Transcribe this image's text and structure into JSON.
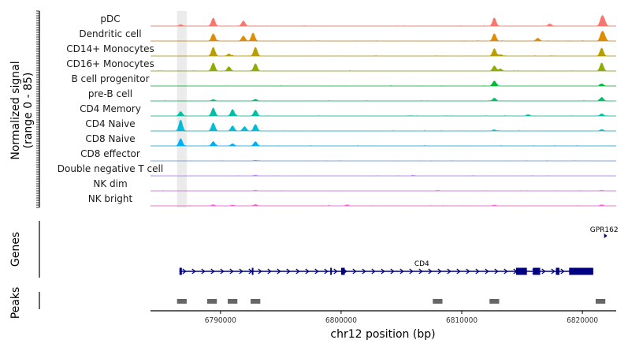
{
  "chart_data": {
    "type": "genome-coverage",
    "ylabel_line1": "Normalized signal",
    "ylabel_line2": "(range 0 - 85)",
    "xlabel": "chr12 position (bp)",
    "xlim": [
      6784200,
      6822800
    ],
    "x_ticks": [
      6790000,
      6800000,
      6810000,
      6820000
    ],
    "x_tick_labels": [
      "6790000",
      "6800000",
      "6810000",
      "6820000"
    ],
    "highlight_region": [
      6786400,
      6787200
    ],
    "tracks": [
      {
        "name": "pDC",
        "color": "#F8766D",
        "peaks": [
          [
            6786700,
            0.1
          ],
          [
            6789400,
            0.55
          ],
          [
            6791900,
            0.35
          ],
          [
            6812700,
            0.55
          ],
          [
            6817300,
            0.15
          ],
          [
            6821600,
            0.55
          ],
          [
            6821800,
            0.35
          ]
        ]
      },
      {
        "name": "Dendritic cell",
        "color": "#DE8C00",
        "peaks": [
          [
            6789400,
            0.5
          ],
          [
            6791900,
            0.35
          ],
          [
            6792700,
            0.55
          ],
          [
            6812700,
            0.5
          ],
          [
            6816300,
            0.2
          ],
          [
            6821600,
            0.5
          ],
          [
            6821800,
            0.35
          ]
        ]
      },
      {
        "name": "CD14+ Monocytes",
        "color": "#B79F00",
        "peaks": [
          [
            6789400,
            0.6
          ],
          [
            6790700,
            0.15
          ],
          [
            6792900,
            0.6
          ],
          [
            6812700,
            0.5
          ],
          [
            6813200,
            0.1
          ],
          [
            6821600,
            0.55
          ]
        ]
      },
      {
        "name": "CD16+ Monocytes",
        "color": "#93AA00",
        "peaks": [
          [
            6789400,
            0.55
          ],
          [
            6790700,
            0.3
          ],
          [
            6792900,
            0.5
          ],
          [
            6812700,
            0.35
          ],
          [
            6813200,
            0.15
          ],
          [
            6821600,
            0.55
          ]
        ]
      },
      {
        "name": "B cell progenitor",
        "color": "#00BA38",
        "peaks": [
          [
            6812700,
            0.35
          ],
          [
            6821600,
            0.15
          ]
        ]
      },
      {
        "name": "pre-B cell",
        "color": "#00BE67",
        "peaks": [
          [
            6789400,
            0.1
          ],
          [
            6792900,
            0.12
          ],
          [
            6812700,
            0.2
          ],
          [
            6821600,
            0.25
          ]
        ]
      },
      {
        "name": "CD4 Memory",
        "color": "#00BFA4",
        "peaks": [
          [
            6786700,
            0.3
          ],
          [
            6789400,
            0.55
          ],
          [
            6791000,
            0.45
          ],
          [
            6792900,
            0.4
          ],
          [
            6815500,
            0.1
          ],
          [
            6821600,
            0.15
          ]
        ]
      },
      {
        "name": "CD4 Naive",
        "color": "#00BCD8",
        "peaks": [
          [
            6786700,
            0.75
          ],
          [
            6789400,
            0.55
          ],
          [
            6791000,
            0.35
          ],
          [
            6792000,
            0.3
          ],
          [
            6792900,
            0.45
          ],
          [
            6812700,
            0.08
          ],
          [
            6821600,
            0.1
          ]
        ]
      },
      {
        "name": "CD8 Naive",
        "color": "#00B0F6",
        "peaks": [
          [
            6786700,
            0.5
          ],
          [
            6789400,
            0.3
          ],
          [
            6791000,
            0.15
          ],
          [
            6792900,
            0.3
          ]
        ]
      },
      {
        "name": "CD8 effector",
        "color": "#619CFF",
        "peaks": [
          [
            6792900,
            0.05
          ]
        ]
      },
      {
        "name": "Double negative T cell",
        "color": "#B983FF",
        "peaks": [
          [
            6792900,
            0.06
          ],
          [
            6806000,
            0.04
          ]
        ]
      },
      {
        "name": "NK dim",
        "color": "#E76BF3",
        "peaks": [
          [
            6792900,
            0.05
          ],
          [
            6808000,
            0.04
          ],
          [
            6821600,
            0.05
          ]
        ]
      },
      {
        "name": "NK bright",
        "color": "#FD61D1",
        "peaks": [
          [
            6789400,
            0.08
          ],
          [
            6791000,
            0.06
          ],
          [
            6792900,
            0.1
          ],
          [
            6800500,
            0.08
          ],
          [
            6812700,
            0.06
          ],
          [
            6821600,
            0.08
          ]
        ]
      }
    ],
    "genes": [
      {
        "name": "CD4",
        "start": 6786600,
        "end": 6820900,
        "strand": "+",
        "exons": [
          [
            6786600,
            6786800
          ],
          [
            6792600,
            6792700
          ],
          [
            6799100,
            6799200
          ],
          [
            6800000,
            6800300
          ],
          [
            6814500,
            6815400
          ],
          [
            6815900,
            6816500
          ],
          [
            6817800,
            6818100
          ],
          [
            6818900,
            6820900
          ]
        ]
      },
      {
        "name": "GPR162",
        "start": 6821800,
        "end": 6822000,
        "strand": "+",
        "exons": []
      }
    ],
    "peaks_track": [
      [
        6786400,
        6787200
      ],
      [
        6788900,
        6789700
      ],
      [
        6790600,
        6791400
      ],
      [
        6792500,
        6793300
      ],
      [
        6807600,
        6808400
      ],
      [
        6812300,
        6813100
      ],
      [
        6821100,
        6821900
      ]
    ],
    "panel_labels": {
      "genes": "Genes",
      "peaks": "Peaks"
    }
  }
}
